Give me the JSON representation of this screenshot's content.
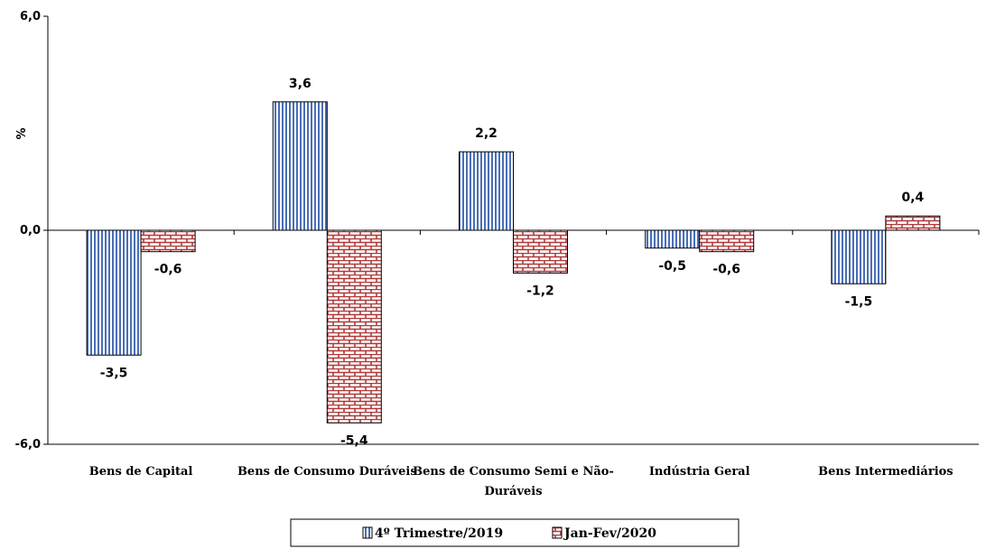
{
  "chart_data": {
    "type": "bar",
    "title": "",
    "xlabel": "",
    "ylabel": "%",
    "ylim": [
      -6.0,
      6.0
    ],
    "yticks": [
      "6,0",
      "0,0",
      "-6,0"
    ],
    "ytick_values": [
      6.0,
      0.0,
      -6.0
    ],
    "categories": [
      [
        "Bens de Capital"
      ],
      [
        "Bens de Consumo Duráveis"
      ],
      [
        "Bens de Consumo Semi e Não-",
        "Duráveis"
      ],
      [
        "Indústria Geral"
      ],
      [
        "Bens Intermediários"
      ]
    ],
    "series": [
      {
        "name": "4º Trimestre/2019",
        "values": [
          -3.5,
          3.6,
          2.2,
          -0.5,
          -1.5
        ],
        "labels": [
          "-3,5",
          "3,6",
          "2,2",
          "-0,5",
          "-1,5"
        ],
        "color": "#4a6fb5",
        "pattern": "vertical-stripes"
      },
      {
        "name": "Jan-Fev/2020",
        "values": [
          -0.6,
          -5.4,
          -1.2,
          -0.6,
          0.4
        ],
        "labels": [
          "-0,6",
          "-5,4",
          "-1,2",
          "-0,6",
          "0,4"
        ],
        "color": "#b03a3a",
        "pattern": "brick"
      }
    ],
    "grid": false,
    "legend_position": "bottom"
  }
}
